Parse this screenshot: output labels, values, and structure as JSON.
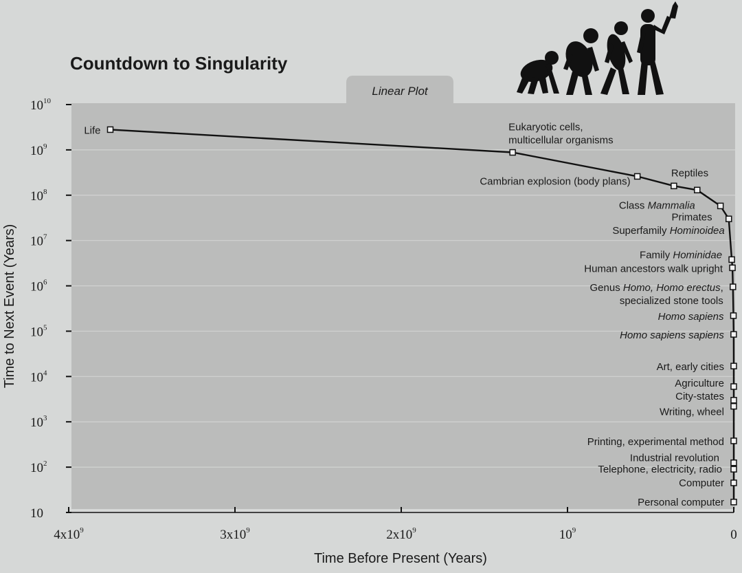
{
  "chart_data": {
    "type": "line",
    "title": "Countdown to Singularity",
    "plot_tab_label": "Linear Plot",
    "xlabel": "Time Before Present (Years)",
    "ylabel": "Time to Next Event (Years)",
    "x_scale": "linear",
    "y_scale": "log",
    "xlim": [
      4000000000,
      0
    ],
    "ylim": [
      10,
      10000000000
    ],
    "grid": true,
    "x_ticks": [
      {
        "value": 4000000000,
        "base": "4x10",
        "exp": "9"
      },
      {
        "value": 3000000000,
        "base": "3x10",
        "exp": "9"
      },
      {
        "value": 2000000000,
        "base": "2x10",
        "exp": "9"
      },
      {
        "value": 1000000000,
        "base": "10",
        "exp": "9"
      },
      {
        "value": 0,
        "base": "0",
        "exp": ""
      }
    ],
    "y_ticks": [
      {
        "value": 10,
        "base": "10",
        "exp": ""
      },
      {
        "value": 100,
        "base": "10",
        "exp": "2"
      },
      {
        "value": 1000,
        "base": "10",
        "exp": "3"
      },
      {
        "value": 10000,
        "base": "10",
        "exp": "4"
      },
      {
        "value": 100000,
        "base": "10",
        "exp": "5"
      },
      {
        "value": 1000000,
        "base": "10",
        "exp": "6"
      },
      {
        "value": 10000000,
        "base": "10",
        "exp": "7"
      },
      {
        "value": 100000000,
        "base": "10",
        "exp": "8"
      },
      {
        "value": 1000000000,
        "base": "10",
        "exp": "9"
      },
      {
        "value": 10000000000,
        "base": "10",
        "exp": "10"
      }
    ],
    "points": [
      {
        "x": 3750000000,
        "y": 2800000000,
        "label": [
          [
            {
              "t": "Life"
            }
          ]
        ]
      },
      {
        "x": 1330000000,
        "y": 880000000,
        "label": [
          [
            {
              "t": "Eukaryotic cells,"
            }
          ],
          [
            {
              "t": "multicellular organisms"
            }
          ]
        ]
      },
      {
        "x": 580000000,
        "y": 260000000,
        "label": [
          [
            {
              "t": "Cambrian explosion (body plans)"
            }
          ]
        ]
      },
      {
        "x": 360000000,
        "y": 160000000,
        "label": [
          [
            {
              "t": "Reptiles"
            }
          ]
        ]
      },
      {
        "x": 220000000,
        "y": 130000000,
        "label": [
          [
            {
              "t": "Class "
            },
            {
              "t": "Mammalia",
              "i": true
            }
          ]
        ]
      },
      {
        "x": 80000000,
        "y": 58000000,
        "label": [
          [
            {
              "t": "Primates"
            }
          ]
        ]
      },
      {
        "x": 30000000,
        "y": 30000000,
        "label": [
          [
            {
              "t": "Superfamily "
            },
            {
              "t": "Hominoidea",
              "i": true
            }
          ]
        ]
      },
      {
        "x": 12000000,
        "y": 3800000,
        "label": [
          [
            {
              "t": "Family "
            },
            {
              "t": "Hominidae",
              "i": true
            }
          ]
        ]
      },
      {
        "x": 8000000,
        "y": 2500000,
        "label": [
          [
            {
              "t": "Human ancestors walk upright"
            }
          ]
        ]
      },
      {
        "x": 5000000,
        "y": 950000,
        "label": [
          [
            {
              "t": "Genus "
            },
            {
              "t": "Homo, Homo erectus",
              "i": true
            },
            {
              "t": ","
            }
          ],
          [
            {
              "t": "specialized stone tools"
            }
          ]
        ]
      },
      {
        "x": 2000000,
        "y": 220000,
        "label": [
          [
            {
              "t": "Homo sapiens",
              "i": true
            }
          ]
        ]
      },
      {
        "x": 500000,
        "y": 85000,
        "label": [
          [
            {
              "t": "Homo sapiens sapiens",
              "i": true
            }
          ]
        ]
      },
      {
        "x": 40000,
        "y": 17000,
        "label": [
          [
            {
              "t": "Art, early cities"
            }
          ]
        ]
      },
      {
        "x": 20000,
        "y": 6000,
        "label": [
          [
            {
              "t": "Agriculture"
            }
          ]
        ]
      },
      {
        "x": 8000,
        "y": 3000,
        "label": [
          [
            {
              "t": "City-states"
            }
          ]
        ]
      },
      {
        "x": 5000,
        "y": 2200,
        "label": [
          [
            {
              "t": "Writing, wheel"
            }
          ]
        ]
      },
      {
        "x": 500,
        "y": 380,
        "label": [
          [
            {
              "t": "Printing, experimental method"
            }
          ]
        ]
      },
      {
        "x": 200,
        "y": 125,
        "label": [
          [
            {
              "t": "Industrial revolution"
            }
          ]
        ]
      },
      {
        "x": 100,
        "y": 90,
        "label": [
          [
            {
              "t": "Telephone, electricity, radio"
            }
          ]
        ]
      },
      {
        "x": 50,
        "y": 45,
        "label": [
          [
            {
              "t": "Computer"
            }
          ]
        ]
      },
      {
        "x": 20,
        "y": 17,
        "label": [
          [
            {
              "t": "Personal computer"
            }
          ]
        ]
      }
    ],
    "decorative_illustration": "evolution-of-man-silhouette"
  }
}
